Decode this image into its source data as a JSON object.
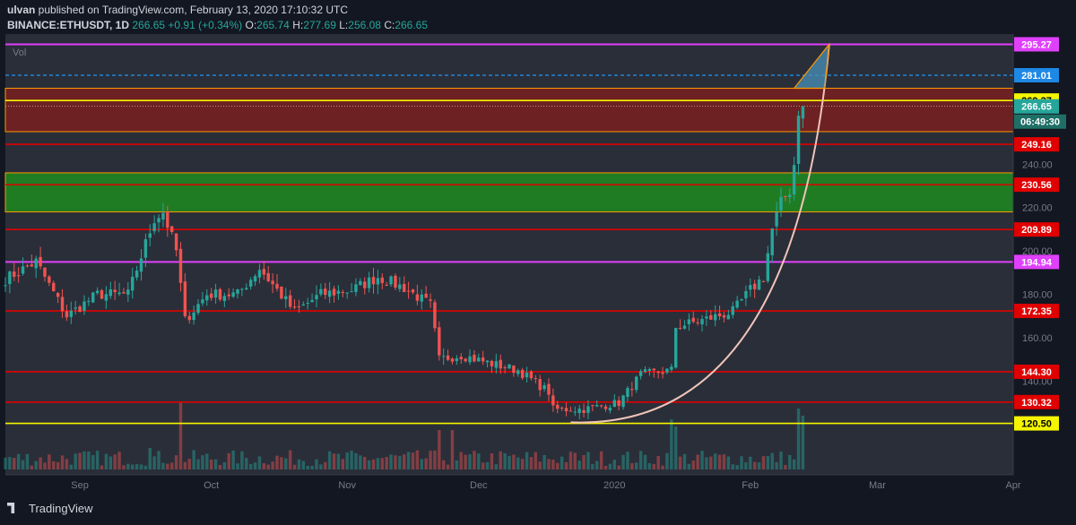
{
  "header": {
    "author": "ulvan",
    "published": " published on TradingView.com, February 13, 2020 17:10:32 UTC",
    "symbol": "BINANCE:ETHUSDT, 1D",
    "last": "266.65",
    "change": "+0.91 (+0.34%)",
    "o_label": "O:",
    "o": "265.74",
    "h_label": "H:",
    "h": "277.69",
    "l_label": "L:",
    "l": "256.08",
    "c_label": "C:",
    "c": "266.65"
  },
  "brand": "TradingView",
  "colors": {
    "up": "#26a69a",
    "down": "#ef5350",
    "red_line": "#e00000",
    "magenta_line": "#e040fb",
    "yellow_line": "#f5f500",
    "orange_line": "#ff9800",
    "red_zone": "#7a1f1f",
    "green_zone": "#1f8a1f",
    "blue_dash": "#2196f3",
    "curve": "#f0c4b8"
  },
  "chart_data": {
    "type": "candlestick",
    "vol_label": "Vol",
    "ylim": [
      110,
      300
    ],
    "y_ticks": [
      120,
      140,
      160,
      180,
      200,
      220,
      240
    ],
    "y_tick_labels": [
      "120.00",
      "140.00",
      "160.00",
      "180.00",
      "200.00",
      "220.00",
      "240.00"
    ],
    "x_labels": [
      {
        "label": "Sep",
        "date": "2019-09-01"
      },
      {
        "label": "Oct",
        "date": "2019-10-01"
      },
      {
        "label": "Nov",
        "date": "2019-11-01"
      },
      {
        "label": "Dec",
        "date": "2019-12-01"
      },
      {
        "label": "2020",
        "date": "2020-01-01"
      },
      {
        "label": "Feb",
        "date": "2020-02-01"
      },
      {
        "label": "Mar",
        "date": "2020-03-01"
      },
      {
        "label": "Apr",
        "date": "2020-04-01"
      }
    ],
    "start_date": "2019-08-15",
    "last_date": "2020-02-13",
    "end_date": "2020-04-01",
    "close_anchors": [
      [
        "2019-08-15",
        187
      ],
      [
        "2019-08-22",
        195
      ],
      [
        "2019-08-29",
        170
      ],
      [
        "2019-09-05",
        180
      ],
      [
        "2019-09-12",
        180
      ],
      [
        "2019-09-18",
        215
      ],
      [
        "2019-09-20",
        218
      ],
      [
        "2019-09-23",
        200
      ],
      [
        "2019-09-25",
        168
      ],
      [
        "2019-09-30",
        180
      ],
      [
        "2019-10-07",
        180
      ],
      [
        "2019-10-12",
        192
      ],
      [
        "2019-10-20",
        172
      ],
      [
        "2019-10-26",
        180
      ],
      [
        "2019-11-02",
        182
      ],
      [
        "2019-11-08",
        188
      ],
      [
        "2019-11-14",
        183
      ],
      [
        "2019-11-20",
        175
      ],
      [
        "2019-11-22",
        150
      ],
      [
        "2019-11-27",
        152
      ],
      [
        "2019-12-04",
        148
      ],
      [
        "2019-12-10",
        145
      ],
      [
        "2019-12-17",
        135
      ],
      [
        "2019-12-18",
        127
      ],
      [
        "2019-12-25",
        127
      ],
      [
        "2020-01-02",
        130
      ],
      [
        "2020-01-07",
        143
      ],
      [
        "2020-01-14",
        145
      ],
      [
        "2020-01-15",
        165
      ],
      [
        "2020-01-21",
        168
      ],
      [
        "2020-01-28",
        172
      ],
      [
        "2020-02-01",
        182
      ],
      [
        "2020-02-04",
        188
      ],
      [
        "2020-02-06",
        210
      ],
      [
        "2020-02-08",
        222
      ],
      [
        "2020-02-10",
        228
      ],
      [
        "2020-02-11",
        240
      ],
      [
        "2020-02-12",
        265
      ],
      [
        "2020-02-13",
        266.65
      ]
    ],
    "volume_note": "relative daily volume, spikes near major moves",
    "volume_spikes": [
      [
        "2019-09-17",
        0.3
      ],
      [
        "2019-09-24",
        0.95
      ],
      [
        "2019-11-22",
        0.55
      ],
      [
        "2019-11-25",
        0.55
      ],
      [
        "2020-01-14",
        0.7
      ],
      [
        "2020-01-15",
        0.6
      ],
      [
        "2020-02-12",
        0.85
      ],
      [
        "2020-02-13",
        0.75
      ]
    ],
    "horizontal_levels": [
      {
        "value": 295.27,
        "label": "295.27",
        "style": "magenta"
      },
      {
        "value": 281.01,
        "label": "281.01",
        "style": "blue-dash"
      },
      {
        "value": 269.37,
        "label": "269.37",
        "style": "yellow"
      },
      {
        "value": 266.65,
        "label": "266.65",
        "style": "price"
      },
      {
        "value": 249.16,
        "label": "249.16",
        "style": "red"
      },
      {
        "value": 230.56,
        "label": "230.56",
        "style": "red"
      },
      {
        "value": 209.89,
        "label": "209.89",
        "style": "red"
      },
      {
        "value": 194.94,
        "label": "194.94",
        "style": "magenta"
      },
      {
        "value": 172.35,
        "label": "172.35",
        "style": "red"
      },
      {
        "value": 144.3,
        "label": "144.30",
        "style": "red"
      },
      {
        "value": 130.32,
        "label": "130.32",
        "style": "red"
      },
      {
        "value": 120.5,
        "label": "120.50",
        "style": "yellow"
      }
    ],
    "countdown": "06:49:30",
    "zones": [
      {
        "name": "resistance",
        "from": 255,
        "to": 275,
        "color": "red"
      },
      {
        "name": "support",
        "from": 218,
        "to": 236,
        "color": "green"
      }
    ],
    "curve": {
      "from": [
        "2019-12-22",
        121
      ],
      "to": [
        "2020-02-19",
        295
      ]
    },
    "triangle": [
      [
        "2020-02-11",
        275
      ],
      [
        "2020-02-19",
        295.27
      ],
      [
        "2020-02-18",
        275
      ]
    ]
  }
}
